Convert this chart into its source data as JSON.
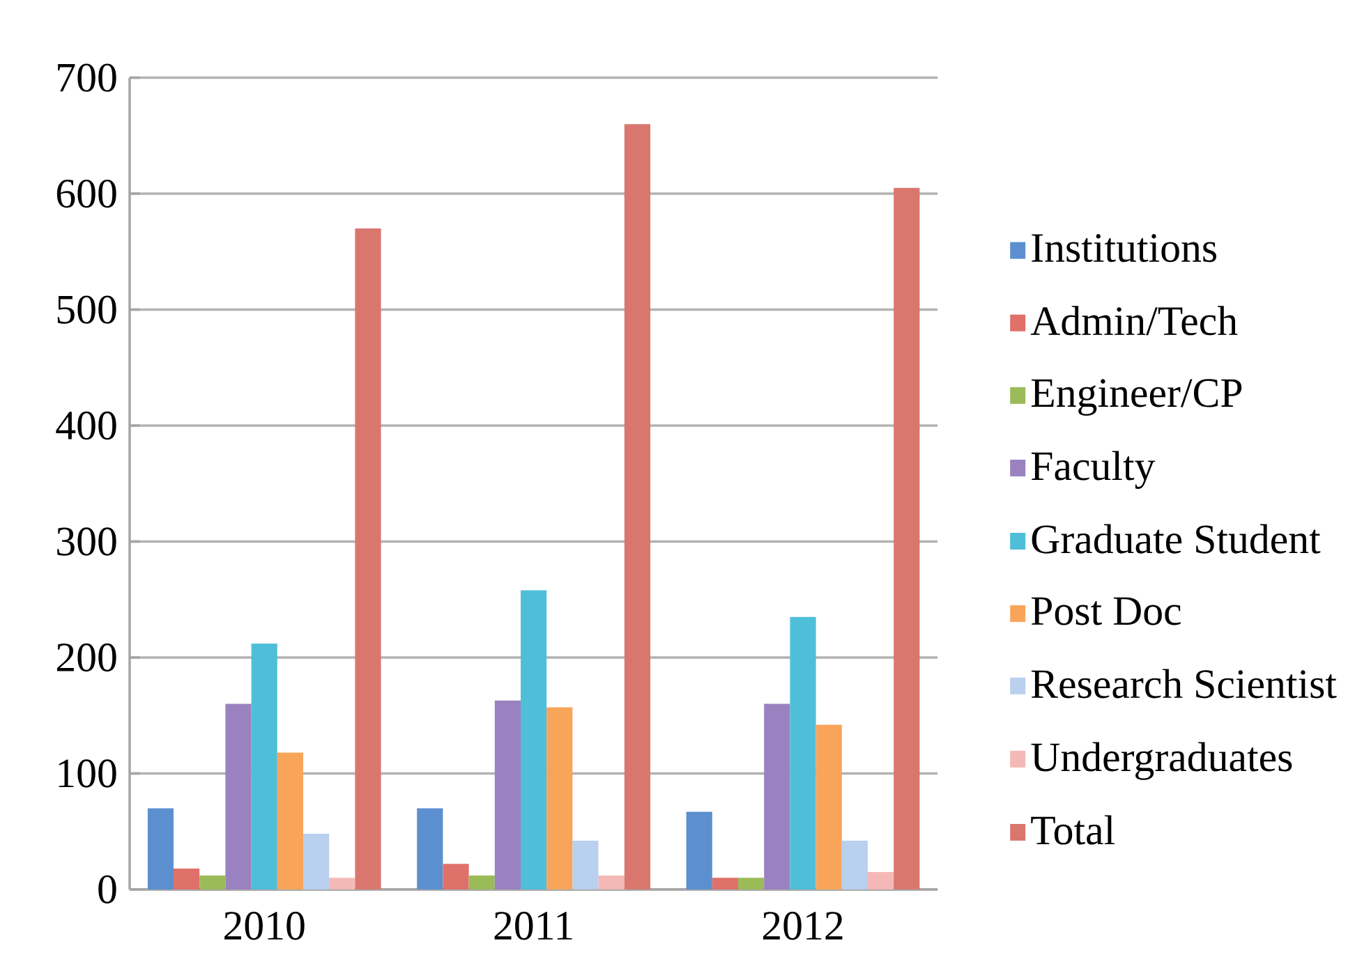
{
  "chart_data": {
    "type": "bar",
    "categories": [
      "2010",
      "2011",
      "2012"
    ],
    "series": [
      {
        "name": "Institutions",
        "color": "#5b8fcf",
        "values": [
          70,
          70,
          67
        ]
      },
      {
        "name": "Admin/Tech",
        "color": "#e0706a",
        "values": [
          18,
          22,
          10
        ]
      },
      {
        "name": "Engineer/CP",
        "color": "#9bbb59",
        "values": [
          12,
          12,
          10
        ]
      },
      {
        "name": "Faculty",
        "color": "#9a82c0",
        "values": [
          160,
          163,
          160
        ]
      },
      {
        "name": "Graduate Student",
        "color": "#4fbfd9",
        "values": [
          212,
          258,
          235
        ]
      },
      {
        "name": "Post Doc",
        "color": "#f8a55a",
        "values": [
          118,
          157,
          142
        ]
      },
      {
        "name": "Research Scientist",
        "color": "#b9d0ef",
        "values": [
          48,
          42,
          42
        ]
      },
      {
        "name": "Undergraduates",
        "color": "#f4b9b6",
        "values": [
          10,
          12,
          15
        ]
      },
      {
        "name": "Total",
        "color": "#d9776e",
        "values": [
          570,
          660,
          605
        ]
      }
    ],
    "ylim": [
      0,
      700
    ],
    "yticks": [
      0,
      100,
      200,
      300,
      400,
      500,
      600,
      700
    ],
    "grid": "y",
    "legend": "right"
  }
}
